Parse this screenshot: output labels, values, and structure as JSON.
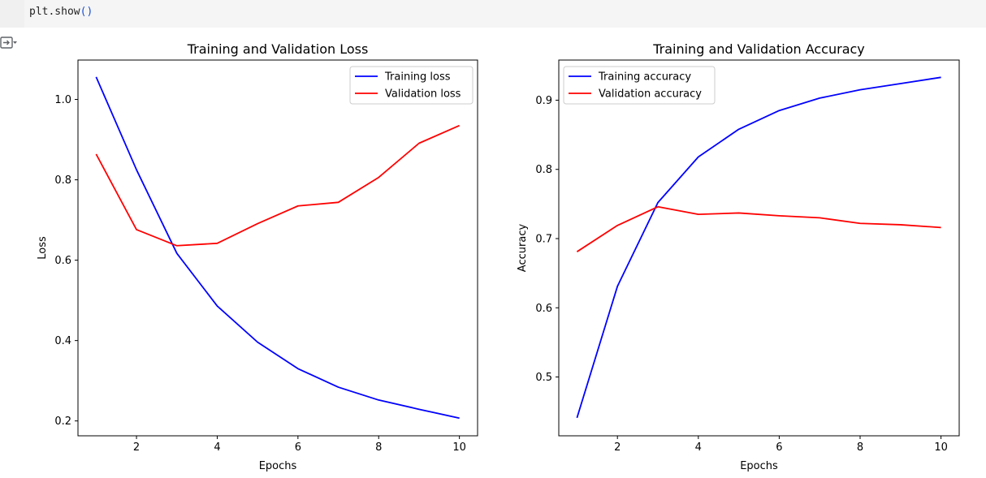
{
  "code": {
    "text": "plt.show",
    "parens": "()"
  },
  "output_toggle_icon": "output-toggle-icon",
  "colors": {
    "training": "#0000ff",
    "validation": "#ff0000",
    "code_bg": "#f5f5f5"
  },
  "chart_data": [
    {
      "type": "line",
      "title": "Training and Validation Loss",
      "xlabel": "Epochs",
      "ylabel": "Loss",
      "x": [
        1,
        2,
        3,
        4,
        5,
        6,
        7,
        8,
        9,
        10
      ],
      "xlim": [
        0.55,
        10.45
      ],
      "ylim": [
        0.163,
        1.098
      ],
      "xticks": [
        2,
        4,
        6,
        8,
        10
      ],
      "yticks": [
        0.2,
        0.4,
        0.6,
        0.8,
        1.0
      ],
      "ytick_labels": [
        "0.2",
        "0.4",
        "0.6",
        "0.8",
        "1.0"
      ],
      "legend_position": "upper right",
      "series": [
        {
          "name": "Training loss",
          "color": "#0000ff",
          "values": [
            1.056,
            0.825,
            0.617,
            0.486,
            0.396,
            0.33,
            0.284,
            0.252,
            0.229,
            0.207
          ]
        },
        {
          "name": "Validation loss",
          "color": "#ff0000",
          "values": [
            0.864,
            0.676,
            0.636,
            0.642,
            0.691,
            0.735,
            0.744,
            0.806,
            0.891,
            0.935
          ]
        }
      ]
    },
    {
      "type": "line",
      "title": "Training and Validation Accuracy",
      "xlabel": "Epochs",
      "ylabel": "Accuracy",
      "x": [
        1,
        2,
        3,
        4,
        5,
        6,
        7,
        8,
        9,
        10
      ],
      "xlim": [
        0.55,
        10.45
      ],
      "ylim": [
        0.415,
        0.958
      ],
      "xticks": [
        2,
        4,
        6,
        8,
        10
      ],
      "yticks": [
        0.5,
        0.6,
        0.7,
        0.8,
        0.9
      ],
      "ytick_labels": [
        "0.5",
        "0.6",
        "0.7",
        "0.8",
        "0.9"
      ],
      "legend_position": "upper left",
      "series": [
        {
          "name": "Training accuracy",
          "color": "#0000ff",
          "values": [
            0.441,
            0.631,
            0.752,
            0.818,
            0.858,
            0.885,
            0.903,
            0.915,
            0.924,
            0.933
          ]
        },
        {
          "name": "Validation accuracy",
          "color": "#ff0000",
          "values": [
            0.681,
            0.719,
            0.746,
            0.735,
            0.737,
            0.733,
            0.73,
            0.722,
            0.72,
            0.716
          ]
        }
      ]
    }
  ]
}
